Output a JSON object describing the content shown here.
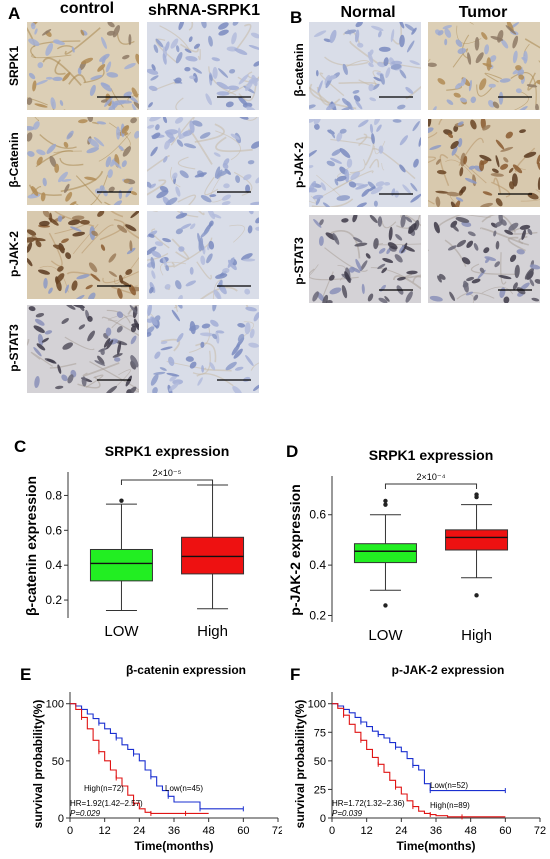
{
  "panelA": {
    "letter": "A",
    "columns": [
      "control",
      "shRNA-SRPK1"
    ],
    "rows": [
      "SRPK1",
      "β-Catenin",
      "p-JAK-2",
      "p-STAT3"
    ]
  },
  "panelB": {
    "letter": "B",
    "columns": [
      "Normal",
      "Tumor"
    ],
    "rows": [
      "β-catenin",
      "p-JAK-2",
      "p-STAT3"
    ]
  },
  "chart_data": [
    {
      "panel": "C",
      "type": "box",
      "title": "SRPK1 expression",
      "ylabel": "β-catenin expression",
      "categories": [
        "LOW",
        "High"
      ],
      "ylim": [
        0.12,
        0.9
      ],
      "yticks": [
        0.2,
        0.4,
        0.6,
        0.8
      ],
      "significance": "2×10⁻⁵",
      "boxes": [
        {
          "name": "LOW",
          "color": "#22ee22",
          "whisker_low": 0.14,
          "q1": 0.31,
          "median": 0.41,
          "q3": 0.49,
          "whisker_high": 0.75,
          "outliers": [
            0.77
          ]
        },
        {
          "name": "High",
          "color": "#ee1111",
          "whisker_low": 0.15,
          "q1": 0.35,
          "median": 0.45,
          "q3": 0.56,
          "whisker_high": 0.86,
          "outliers": []
        }
      ]
    },
    {
      "panel": "D",
      "type": "box",
      "title": "SRPK1 expression",
      "ylabel": "p-JAK-2 expression",
      "categories": [
        "LOW",
        "High"
      ],
      "ylim": [
        0.19,
        0.73
      ],
      "yticks": [
        0.2,
        0.4,
        0.6
      ],
      "significance": "2×10⁻⁴",
      "boxes": [
        {
          "name": "LOW",
          "color": "#22ee22",
          "whisker_low": 0.3,
          "q1": 0.41,
          "median": 0.455,
          "q3": 0.485,
          "whisker_high": 0.6,
          "outliers": [
            0.24,
            0.64,
            0.655
          ]
        },
        {
          "name": "High",
          "color": "#ee1111",
          "whisker_low": 0.35,
          "q1": 0.46,
          "median": 0.51,
          "q3": 0.54,
          "whisker_high": 0.64,
          "outliers": [
            0.28,
            0.67,
            0.68
          ]
        }
      ]
    },
    {
      "panel": "E",
      "type": "line",
      "title": "β-catenin expression",
      "xlabel": "Time(months)",
      "ylabel": "survival probability(%)",
      "xlim": [
        0,
        72
      ],
      "ylim": [
        0,
        105
      ],
      "xticks": [
        0,
        12,
        24,
        36,
        48,
        60,
        72
      ],
      "yticks": [
        0,
        50,
        100
      ],
      "series": [
        {
          "name": "Low(n=45)",
          "color": "#1a2fd0",
          "x": [
            0,
            2,
            4,
            6,
            8,
            10,
            12,
            14,
            16,
            18,
            20,
            22,
            24,
            26,
            28,
            30,
            32,
            34,
            36,
            40,
            45,
            50,
            55,
            60
          ],
          "y": [
            100,
            98,
            95,
            91,
            87,
            83,
            78,
            74,
            70,
            64,
            60,
            56,
            50,
            42,
            36,
            28,
            24,
            19,
            14,
            14,
            8,
            8,
            8,
            8
          ]
        },
        {
          "name": "High(n=72)",
          "color": "#e01414",
          "x": [
            0,
            2,
            4,
            6,
            8,
            10,
            12,
            14,
            16,
            18,
            20,
            22,
            24,
            26,
            28,
            30,
            34,
            40,
            48
          ],
          "y": [
            100,
            95,
            88,
            78,
            68,
            58,
            50,
            42,
            35,
            28,
            20,
            13,
            8,
            5,
            4,
            4,
            4,
            4,
            4
          ]
        }
      ],
      "annotations": [
        "High(n=72)",
        "Low(n=45)",
        "HR=1.92(1.42–2.57)",
        "P=0.029"
      ]
    },
    {
      "panel": "F",
      "type": "line",
      "title": "p-JAK-2 expression",
      "xlabel": "Time(months)",
      "ylabel": "survival probability(%)",
      "xlim": [
        0,
        72
      ],
      "ylim": [
        0,
        105
      ],
      "xticks": [
        0,
        12,
        24,
        36,
        48,
        60,
        72
      ],
      "yticks": [
        0,
        25,
        50,
        75,
        100
      ],
      "series": [
        {
          "name": "Low(n=52)",
          "color": "#1a2fd0",
          "x": [
            0,
            2,
            4,
            6,
            8,
            10,
            12,
            14,
            16,
            18,
            20,
            22,
            24,
            26,
            28,
            30,
            32,
            34,
            40,
            45,
            60
          ],
          "y": [
            100,
            98,
            95,
            92,
            88,
            84,
            80,
            76,
            73,
            70,
            66,
            62,
            58,
            52,
            46,
            42,
            30,
            24,
            24,
            24,
            24
          ]
        },
        {
          "name": "High(n=89)",
          "color": "#e01414",
          "x": [
            0,
            2,
            4,
            6,
            8,
            10,
            12,
            14,
            16,
            18,
            20,
            22,
            24,
            26,
            28,
            30,
            32,
            34,
            36,
            40,
            45,
            60
          ],
          "y": [
            100,
            96,
            90,
            82,
            75,
            68,
            60,
            53,
            47,
            40,
            33,
            27,
            21,
            15,
            10,
            6,
            4,
            3,
            2,
            1,
            1,
            1
          ]
        }
      ],
      "annotations": [
        "Low(n=52)",
        "High(n=89)",
        "HR=1.72(1.32–2.36)",
        "P=0.039"
      ]
    }
  ]
}
